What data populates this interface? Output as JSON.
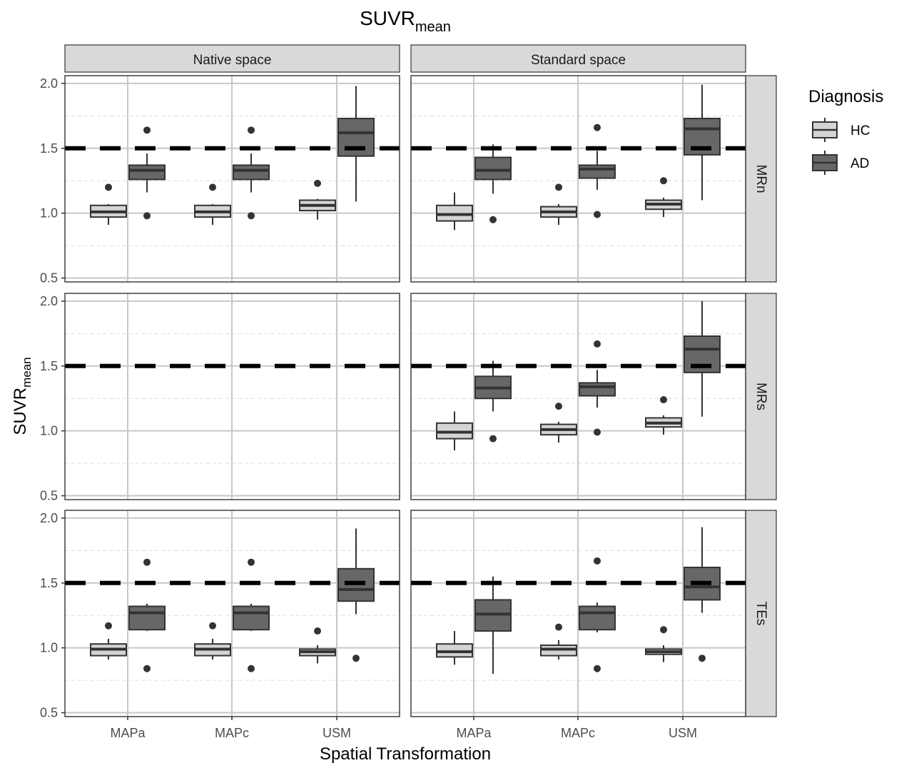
{
  "chart_data": {
    "type": "boxplot",
    "title": "SUVR",
    "title_subscript": "mean",
    "xlabel": "Spatial Transformation",
    "ylabel": "SUVR",
    "ylabel_subscript": "mean",
    "ylim": [
      0.47,
      2.06
    ],
    "yticks": [
      "0.5",
      "1.0",
      "1.5",
      "2.0"
    ],
    "ytick_values": [
      0.5,
      1.0,
      1.5,
      2.0
    ],
    "reference_line": 1.5,
    "categories": [
      "MAPa",
      "MAPc",
      "USM"
    ],
    "col_facets": [
      "Native space",
      "Standard space"
    ],
    "row_facets": [
      "MRn",
      "MRs",
      "TEs"
    ],
    "grid": true,
    "legend": {
      "title": "Diagnosis",
      "position": "right",
      "entries": [
        {
          "label": "HC",
          "color": "#d4d4d4"
        },
        {
          "label": "AD",
          "color": "#676767"
        }
      ]
    },
    "panels": [
      {
        "row": 0,
        "col": 0,
        "boxes": [
          {
            "category": "MAPa",
            "group": "HC",
            "whisker_low": 0.91,
            "q1": 0.97,
            "median": 1.01,
            "q3": 1.06,
            "whisker_high": 1.07,
            "outliers": [
              1.2
            ]
          },
          {
            "category": "MAPa",
            "group": "AD",
            "whisker_low": 1.16,
            "q1": 1.26,
            "median": 1.33,
            "q3": 1.37,
            "whisker_high": 1.46,
            "outliers": [
              1.64,
              0.98
            ]
          },
          {
            "category": "MAPc",
            "group": "HC",
            "whisker_low": 0.91,
            "q1": 0.97,
            "median": 1.01,
            "q3": 1.06,
            "whisker_high": 1.07,
            "outliers": [
              1.2
            ]
          },
          {
            "category": "MAPc",
            "group": "AD",
            "whisker_low": 1.16,
            "q1": 1.26,
            "median": 1.33,
            "q3": 1.37,
            "whisker_high": 1.46,
            "outliers": [
              1.64,
              0.98
            ]
          },
          {
            "category": "USM",
            "group": "HC",
            "whisker_low": 0.95,
            "q1": 1.02,
            "median": 1.06,
            "q3": 1.1,
            "whisker_high": 1.11,
            "outliers": [
              1.23
            ]
          },
          {
            "category": "USM",
            "group": "AD",
            "whisker_low": 1.09,
            "q1": 1.44,
            "median": 1.62,
            "q3": 1.73,
            "whisker_high": 1.98,
            "outliers": []
          }
        ]
      },
      {
        "row": 0,
        "col": 1,
        "boxes": [
          {
            "category": "MAPa",
            "group": "HC",
            "whisker_low": 0.87,
            "q1": 0.94,
            "median": 0.99,
            "q3": 1.06,
            "whisker_high": 1.16,
            "outliers": []
          },
          {
            "category": "MAPa",
            "group": "AD",
            "whisker_low": 1.15,
            "q1": 1.26,
            "median": 1.33,
            "q3": 1.43,
            "whisker_high": 1.53,
            "outliers": [
              0.95
            ]
          },
          {
            "category": "MAPc",
            "group": "HC",
            "whisker_low": 0.91,
            "q1": 0.97,
            "median": 1.01,
            "q3": 1.05,
            "whisker_high": 1.07,
            "outliers": [
              1.2
            ]
          },
          {
            "category": "MAPc",
            "group": "AD",
            "whisker_low": 1.18,
            "q1": 1.27,
            "median": 1.34,
            "q3": 1.37,
            "whisker_high": 1.48,
            "outliers": [
              1.66,
              0.99
            ]
          },
          {
            "category": "USM",
            "group": "HC",
            "whisker_low": 0.97,
            "q1": 1.03,
            "median": 1.07,
            "q3": 1.1,
            "whisker_high": 1.12,
            "outliers": [
              1.25
            ]
          },
          {
            "category": "USM",
            "group": "AD",
            "whisker_low": 1.1,
            "q1": 1.45,
            "median": 1.65,
            "q3": 1.73,
            "whisker_high": 1.99,
            "outliers": []
          }
        ]
      },
      {
        "row": 1,
        "col": 0,
        "boxes": []
      },
      {
        "row": 1,
        "col": 1,
        "boxes": [
          {
            "category": "MAPa",
            "group": "HC",
            "whisker_low": 0.85,
            "q1": 0.94,
            "median": 0.99,
            "q3": 1.06,
            "whisker_high": 1.15,
            "outliers": []
          },
          {
            "category": "MAPa",
            "group": "AD",
            "whisker_low": 1.15,
            "q1": 1.25,
            "median": 1.33,
            "q3": 1.42,
            "whisker_high": 1.54,
            "outliers": [
              0.94
            ]
          },
          {
            "category": "MAPc",
            "group": "HC",
            "whisker_low": 0.91,
            "q1": 0.97,
            "median": 1.01,
            "q3": 1.05,
            "whisker_high": 1.07,
            "outliers": [
              1.19
            ]
          },
          {
            "category": "MAPc",
            "group": "AD",
            "whisker_low": 1.18,
            "q1": 1.27,
            "median": 1.34,
            "q3": 1.37,
            "whisker_high": 1.47,
            "outliers": [
              1.67,
              0.99
            ]
          },
          {
            "category": "USM",
            "group": "HC",
            "whisker_low": 0.97,
            "q1": 1.03,
            "median": 1.06,
            "q3": 1.1,
            "whisker_high": 1.12,
            "outliers": [
              1.24
            ]
          },
          {
            "category": "USM",
            "group": "AD",
            "whisker_low": 1.11,
            "q1": 1.45,
            "median": 1.63,
            "q3": 1.73,
            "whisker_high": 2.0,
            "outliers": []
          }
        ]
      },
      {
        "row": 2,
        "col": 0,
        "boxes": [
          {
            "category": "MAPa",
            "group": "HC",
            "whisker_low": 0.91,
            "q1": 0.94,
            "median": 0.99,
            "q3": 1.03,
            "whisker_high": 1.07,
            "outliers": [
              1.17
            ]
          },
          {
            "category": "MAPa",
            "group": "AD",
            "whisker_low": 1.13,
            "q1": 1.14,
            "median": 1.27,
            "q3": 1.32,
            "whisker_high": 1.34,
            "outliers": [
              1.66,
              0.84
            ]
          },
          {
            "category": "MAPc",
            "group": "HC",
            "whisker_low": 0.91,
            "q1": 0.94,
            "median": 0.99,
            "q3": 1.03,
            "whisker_high": 1.07,
            "outliers": [
              1.17
            ]
          },
          {
            "category": "MAPc",
            "group": "AD",
            "whisker_low": 1.13,
            "q1": 1.14,
            "median": 1.27,
            "q3": 1.32,
            "whisker_high": 1.34,
            "outliers": [
              1.66,
              0.84
            ]
          },
          {
            "category": "USM",
            "group": "HC",
            "whisker_low": 0.88,
            "q1": 0.94,
            "median": 0.97,
            "q3": 0.99,
            "whisker_high": 1.02,
            "outliers": [
              1.13
            ]
          },
          {
            "category": "USM",
            "group": "AD",
            "whisker_low": 1.26,
            "q1": 1.36,
            "median": 1.45,
            "q3": 1.61,
            "whisker_high": 1.92,
            "outliers": [
              0.92
            ]
          }
        ]
      },
      {
        "row": 2,
        "col": 1,
        "boxes": [
          {
            "category": "MAPa",
            "group": "HC",
            "whisker_low": 0.87,
            "q1": 0.93,
            "median": 0.97,
            "q3": 1.03,
            "whisker_high": 1.13,
            "outliers": []
          },
          {
            "category": "MAPa",
            "group": "AD",
            "whisker_low": 0.8,
            "q1": 1.13,
            "median": 1.26,
            "q3": 1.37,
            "whisker_high": 1.55,
            "outliers": []
          },
          {
            "category": "MAPc",
            "group": "HC",
            "whisker_low": 0.91,
            "q1": 0.94,
            "median": 0.99,
            "q3": 1.02,
            "whisker_high": 1.06,
            "outliers": [
              1.16
            ]
          },
          {
            "category": "MAPc",
            "group": "AD",
            "whisker_low": 1.12,
            "q1": 1.14,
            "median": 1.27,
            "q3": 1.32,
            "whisker_high": 1.35,
            "outliers": [
              1.67,
              0.84
            ]
          },
          {
            "category": "USM",
            "group": "HC",
            "whisker_low": 0.89,
            "q1": 0.95,
            "median": 0.97,
            "q3": 0.99,
            "whisker_high": 1.02,
            "outliers": [
              1.14
            ]
          },
          {
            "category": "USM",
            "group": "AD",
            "whisker_low": 1.27,
            "q1": 1.37,
            "median": 1.47,
            "q3": 1.62,
            "whisker_high": 1.93,
            "outliers": [
              0.92
            ]
          }
        ]
      }
    ]
  }
}
